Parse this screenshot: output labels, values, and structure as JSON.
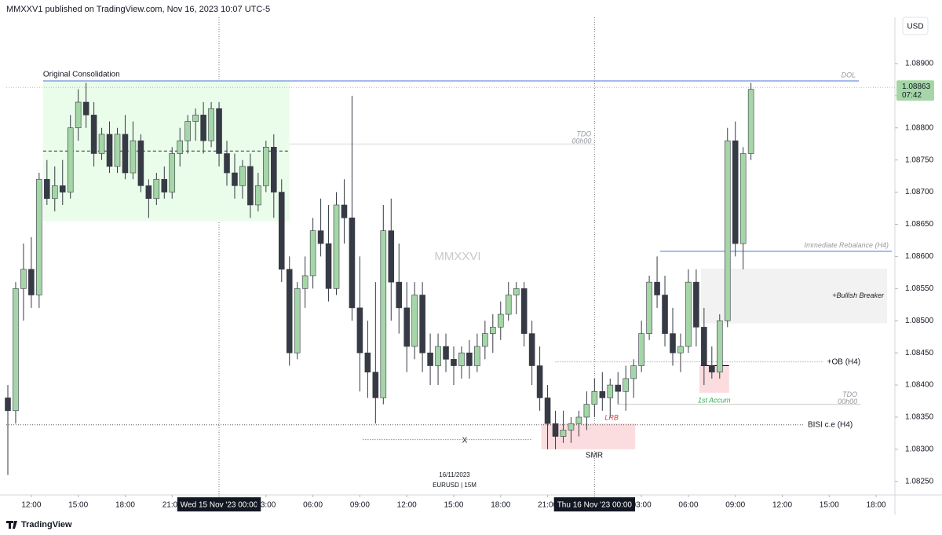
{
  "header": "MMXXV1 published on TradingView.com, Nov 16, 2023 10:07 UTC-5",
  "footer_logo": "TradingView",
  "chart_data": {
    "type": "candlestick",
    "currency": "USD",
    "symbol": "EURUSD | 15M",
    "date_label": "16/11/2023",
    "watermark": "MMXXVI",
    "x_mark": "X",
    "smr": "SMR",
    "x": [
      10.5,
      11,
      11.5,
      12,
      12.5,
      13,
      13.5,
      14,
      14.5,
      15,
      15.5,
      16,
      16.5,
      17,
      17.5,
      18,
      18.5,
      19,
      19.5,
      20,
      20.5,
      21,
      21.5,
      22,
      22.5,
      23,
      23.5,
      24,
      24.5,
      25,
      25.5,
      26,
      26.5,
      27,
      27.5,
      28,
      28.5,
      29,
      29.5,
      30,
      30.5,
      31,
      31.5,
      32,
      32.5,
      33,
      33.5,
      34,
      34.5,
      35,
      35.5,
      36,
      36.5,
      37,
      37.5,
      38,
      38.5,
      39,
      39.5,
      40,
      40.5,
      41,
      41.5,
      42,
      42.5,
      43,
      43.5,
      44,
      44.5,
      45,
      45.5,
      46,
      46.5,
      47,
      47.5,
      48,
      48.5,
      49,
      49.5,
      50,
      50.5,
      51,
      51.5,
      52,
      52.5,
      53,
      53.5,
      54,
      54.5,
      55,
      55.5,
      56,
      56.5,
      57,
      57.5,
      58
    ],
    "ohlc": [
      [
        1.0838,
        1.084,
        1.0826,
        1.0836
      ],
      [
        1.0836,
        1.0856,
        1.0834,
        1.0855
      ],
      [
        1.0855,
        1.0862,
        1.085,
        1.0858
      ],
      [
        1.0858,
        1.0863,
        1.0852,
        1.0854
      ],
      [
        1.0854,
        1.0873,
        1.0852,
        1.0872
      ],
      [
        1.0872,
        1.0875,
        1.0868,
        1.0869
      ],
      [
        1.0869,
        1.0874,
        1.0867,
        1.0871
      ],
      [
        1.0871,
        1.0875,
        1.0868,
        1.087
      ],
      [
        1.087,
        1.0882,
        1.0869,
        1.088
      ],
      [
        1.088,
        1.0886,
        1.0878,
        1.0884
      ],
      [
        1.0884,
        1.0887,
        1.088,
        1.0882
      ],
      [
        1.0882,
        1.0884,
        1.0874,
        1.0876
      ],
      [
        1.0876,
        1.088,
        1.0875,
        1.0879
      ],
      [
        1.0879,
        1.0881,
        1.0873,
        1.0874
      ],
      [
        1.0874,
        1.088,
        1.0873,
        1.0879
      ],
      [
        1.0879,
        1.0882,
        1.0872,
        1.0873
      ],
      [
        1.0873,
        1.0881,
        1.0872,
        1.0878
      ],
      [
        1.0878,
        1.0879,
        1.087,
        1.0871
      ],
      [
        1.0871,
        1.0872,
        1.0866,
        1.0869
      ],
      [
        1.0869,
        1.0873,
        1.0868,
        1.0872
      ],
      [
        1.0872,
        1.0874,
        1.0869,
        1.087
      ],
      [
        1.087,
        1.0877,
        1.0869,
        1.0876
      ],
      [
        1.0876,
        1.088,
        1.0874,
        1.0878
      ],
      [
        1.0878,
        1.0882,
        1.0876,
        1.0881
      ],
      [
        1.0881,
        1.0883,
        1.0878,
        1.0882
      ],
      [
        1.0882,
        1.0884,
        1.0876,
        1.0878
      ],
      [
        1.0878,
        1.0884,
        1.0877,
        1.0883
      ],
      [
        1.0883,
        1.0884,
        1.0874,
        1.0876
      ],
      [
        1.0876,
        1.0878,
        1.0871,
        1.0873
      ],
      [
        1.0873,
        1.0876,
        1.0869,
        1.0871
      ],
      [
        1.0871,
        1.0875,
        1.0869,
        1.0874
      ],
      [
        1.0874,
        1.0876,
        1.0866,
        1.0868
      ],
      [
        1.0868,
        1.0873,
        1.0867,
        1.0871
      ],
      [
        1.0871,
        1.0878,
        1.087,
        1.0877
      ],
      [
        1.0877,
        1.0879,
        1.0866,
        1.087
      ],
      [
        1.087,
        1.0872,
        1.0856,
        1.0858
      ],
      [
        1.0858,
        1.086,
        1.0843,
        1.0845
      ],
      [
        1.0845,
        1.0856,
        1.0844,
        1.0855
      ],
      [
        1.0855,
        1.086,
        1.0852,
        1.0857
      ],
      [
        1.0857,
        1.0866,
        1.0855,
        1.0864
      ],
      [
        1.0864,
        1.0869,
        1.086,
        1.0862
      ],
      [
        1.0862,
        1.0868,
        1.0853,
        1.0855
      ],
      [
        1.0855,
        1.087,
        1.0854,
        1.0868
      ],
      [
        1.0868,
        1.0872,
        1.0862,
        1.0866
      ],
      [
        1.0866,
        1.0885,
        1.085,
        1.0852
      ],
      [
        1.0852,
        1.086,
        1.0839,
        1.0845
      ],
      [
        1.0845,
        1.085,
        1.0838,
        1.0842
      ],
      [
        1.0842,
        1.0856,
        1.0834,
        1.0838
      ],
      [
        1.0838,
        1.0868,
        1.0837,
        1.0864
      ],
      [
        1.0864,
        1.0869,
        1.085,
        1.0856
      ],
      [
        1.0856,
        1.0862,
        1.0848,
        1.0852
      ],
      [
        1.0852,
        1.0856,
        1.0842,
        1.0846
      ],
      [
        1.0846,
        1.0856,
        1.0844,
        1.0854
      ],
      [
        1.0854,
        1.0856,
        1.0842,
        1.0845
      ],
      [
        1.0845,
        1.0848,
        1.084,
        1.0843
      ],
      [
        1.0843,
        1.0848,
        1.084,
        1.0846
      ],
      [
        1.0846,
        1.0848,
        1.0842,
        1.0844
      ],
      [
        1.0844,
        1.0846,
        1.084,
        1.0843
      ],
      [
        1.0843,
        1.0846,
        1.0841,
        1.0845
      ],
      [
        1.0845,
        1.0847,
        1.0841,
        1.0843
      ],
      [
        1.0843,
        1.0848,
        1.0842,
        1.0846
      ],
      [
        1.0846,
        1.085,
        1.0844,
        1.0848
      ],
      [
        1.0848,
        1.0851,
        1.0845,
        1.0849
      ],
      [
        1.0849,
        1.0853,
        1.0847,
        1.0851
      ],
      [
        1.0851,
        1.0856,
        1.085,
        1.0854
      ],
      [
        1.0854,
        1.0856,
        1.0851,
        1.0855
      ],
      [
        1.0855,
        1.0856,
        1.0846,
        1.0848
      ],
      [
        1.0848,
        1.085,
        1.084,
        1.0843
      ],
      [
        1.0843,
        1.0846,
        1.0836,
        1.0838
      ],
      [
        1.0838,
        1.084,
        1.083,
        1.0834
      ],
      [
        1.0834,
        1.0836,
        1.083,
        1.0832
      ],
      [
        1.0832,
        1.0836,
        1.0831,
        1.0833
      ],
      [
        1.0833,
        1.0835,
        1.0831,
        1.0834
      ],
      [
        1.0834,
        1.0836,
        1.0832,
        1.0835
      ],
      [
        1.0835,
        1.0839,
        1.0833,
        1.0837
      ],
      [
        1.0837,
        1.0841,
        1.0835,
        1.0839
      ],
      [
        1.0839,
        1.0842,
        1.0836,
        1.0838
      ],
      [
        1.0838,
        1.0841,
        1.0835,
        1.084
      ],
      [
        1.084,
        1.0842,
        1.0837,
        1.0839
      ],
      [
        1.0839,
        1.0843,
        1.0836,
        1.0841
      ],
      [
        1.0841,
        1.0844,
        1.0838,
        1.0843
      ],
      [
        1.0843,
        1.085,
        1.0842,
        1.0848
      ],
      [
        1.0848,
        1.0857,
        1.0847,
        1.0856
      ],
      [
        1.0856,
        1.086,
        1.0852,
        1.0854
      ],
      [
        1.0854,
        1.0857,
        1.0846,
        1.0848
      ],
      [
        1.0848,
        1.0852,
        1.0843,
        1.0845
      ],
      [
        1.0845,
        1.0848,
        1.0842,
        1.0846
      ],
      [
        1.0846,
        1.0858,
        1.0845,
        1.0856
      ],
      [
        1.0856,
        1.0858,
        1.0846,
        1.0849
      ],
      [
        1.0849,
        1.0852,
        1.084,
        1.0843
      ],
      [
        1.0843,
        1.0846,
        1.0841,
        1.0842
      ],
      [
        1.0842,
        1.0851,
        1.0841,
        1.085
      ],
      [
        1.085,
        1.088,
        1.0849,
        1.0878
      ],
      [
        1.0878,
        1.0881,
        1.086,
        1.0862
      ],
      [
        1.0862,
        1.0877,
        1.0858,
        1.0876
      ],
      [
        1.0876,
        1.0887,
        1.0875,
        1.0886
      ]
    ],
    "up_color": "#a5d6a7",
    "down_color": "#363a45",
    "wick_color": "#363a45",
    "xlim": [
      10.4,
      67.2
    ],
    "xticks": [
      {
        "value": 12,
        "label": "12:00"
      },
      {
        "value": 15,
        "label": "15:00"
      },
      {
        "value": 18,
        "label": "18:00"
      },
      {
        "value": 21,
        "label": "21:00"
      },
      {
        "value": 24,
        "label": "Wed 15 Nov '23 00:00",
        "highlight": true
      },
      {
        "value": 27,
        "label": "03:00"
      },
      {
        "value": 30,
        "label": "06:00"
      },
      {
        "value": 33,
        "label": "09:00"
      },
      {
        "value": 36,
        "label": "12:00"
      },
      {
        "value": 39,
        "label": "15:00"
      },
      {
        "value": 42,
        "label": "18:00"
      },
      {
        "value": 45,
        "label": "21:00"
      },
      {
        "value": 48,
        "label": "Thu 16 Nov '23 00:00",
        "highlight": true
      },
      {
        "value": 51,
        "label": "03:00"
      },
      {
        "value": 54,
        "label": "06:00"
      },
      {
        "value": 57,
        "label": "09:00"
      },
      {
        "value": 60,
        "label": "12:00"
      },
      {
        "value": 63,
        "label": "15:00"
      },
      {
        "value": 66,
        "label": "18:00"
      }
    ],
    "ylim": [
      1.08229,
      1.08972
    ],
    "yticks": [
      {
        "value": 1.0825,
        "label": "1.08250"
      },
      {
        "value": 1.083,
        "label": "1.08300"
      },
      {
        "value": 1.0835,
        "label": "1.08350"
      },
      {
        "value": 1.084,
        "label": "1.08400"
      },
      {
        "value": 1.0845,
        "label": "1.08450"
      },
      {
        "value": 1.085,
        "label": "1.08500"
      },
      {
        "value": 1.0855,
        "label": "1.08550"
      },
      {
        "value": 1.086,
        "label": "1.08600"
      },
      {
        "value": 1.0865,
        "label": "1.08650"
      },
      {
        "value": 1.087,
        "label": "1.08700"
      },
      {
        "value": 1.0875,
        "label": "1.08750"
      },
      {
        "value": 1.088,
        "label": "1.08800"
      },
      {
        "value": 1.0885,
        "label": "1.08850"
      },
      {
        "value": 1.089,
        "label": "1.08900"
      }
    ],
    "last_price": 1.08863,
    "countdown": "07:42",
    "last_price_color": "#a5d6a7",
    "vlines": [
      24,
      48
    ],
    "zones": [
      {
        "x0": 12.75,
        "x1": 28.5,
        "y0": 1.08655,
        "y1": 1.08873,
        "color": "#eafcea"
      },
      {
        "x0": 54.8,
        "x1": 66.7,
        "y0": 1.08496,
        "y1": 1.08581,
        "color": "#f2f2f2",
        "label": "+Bullish Breaker",
        "label_color": "#222222",
        "label_pos": "inside-right"
      },
      {
        "x0": 44.6,
        "x1": 50.6,
        "y0": 1.083,
        "y1": 1.0834,
        "color": "#fbdde0",
        "label": "LRB",
        "label_color": "#e53935",
        "label_pos": "top"
      },
      {
        "x0": 54.7,
        "x1": 56.6,
        "y0": 1.08388,
        "y1": 1.08432,
        "color": "#fbdde0",
        "label": "1st Accum",
        "label_color": "#2eaf4f",
        "label_pos": "bottom"
      }
    ],
    "levels": [
      {
        "value": 1.08873,
        "from": 12.75,
        "to": 64.9,
        "color": "#4a76d8",
        "label": "DOL",
        "left_label": "Original Consolidation",
        "label_style": "italic"
      },
      {
        "value": 1.08775,
        "from": 28.5,
        "to": 48,
        "color": "#d9d9d9",
        "label": "TDO",
        "sub_label": "00h00",
        "label_style": "italic"
      },
      {
        "value": 1.08764,
        "from": 12.75,
        "to": 28.5,
        "color": "#333333",
        "dash": "4 3"
      },
      {
        "value": 1.08608,
        "from": 52.2,
        "to": 67,
        "color": "#4a76d8",
        "label": "Immediate Rebalance (H4)",
        "label_style": "italic"
      },
      {
        "value": 1.08436,
        "from": 45.5,
        "to": 65,
        "color": "#888888",
        "dash": "1 2",
        "label": "+OB (H4)",
        "label_style": "plain"
      },
      {
        "value": 1.0837,
        "from": 49.5,
        "to": 65,
        "color": "#cccccc",
        "label": "TDO",
        "sub_label": "00h00",
        "label_style": "italic"
      },
      {
        "value": 1.08338,
        "from": 10.4,
        "to": 64.5,
        "color": "#555555",
        "dash": "1 2",
        "label": "BISI c.e (H4)",
        "label_style": "plain"
      },
      {
        "value": 1.08315,
        "from": 33.2,
        "to": 44,
        "color": "#555555",
        "dash": "1 2"
      },
      {
        "value": 1.0843,
        "from": 54.8,
        "to": 56.6,
        "color": "#000000"
      }
    ]
  }
}
